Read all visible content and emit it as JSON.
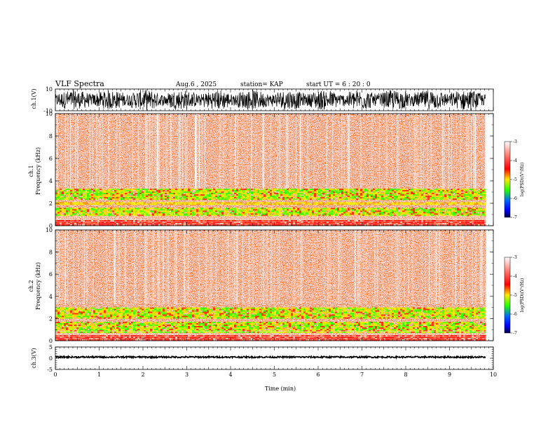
{
  "header": {
    "title": "VLF Spectra",
    "date": "Aug.6  , 2025",
    "station": "station= KAP",
    "start": "start  UT  =   6  : 20 : 0"
  },
  "chart_data": [
    {
      "type": "line",
      "id": "ch1-waveform",
      "ylabel": "ch.1(V)",
      "ylim": [
        -10,
        10
      ],
      "yticks": [
        10,
        -10
      ],
      "xlim": [
        0,
        10
      ],
      "x_end_data": 9.83,
      "description_of_signal": "dense noisy waveform between about -10 and +10 V"
    },
    {
      "type": "heatmap",
      "id": "ch1-spectrogram",
      "ylabel": "Frequency (kHz)",
      "channel_label": "ch.1",
      "ylim": [
        0,
        10
      ],
      "yticks": [
        "0",
        "2",
        "4",
        "6",
        "8",
        "10"
      ],
      "xlim": [
        0,
        10
      ],
      "x_end_data": 9.83,
      "bands_khz": [
        {
          "from": 0.0,
          "to": 0.5,
          "level": "red"
        },
        {
          "from": 0.9,
          "to": 1.6,
          "level": "yellow-green"
        },
        {
          "from": 1.9,
          "to": 2.1,
          "level": "yellow"
        },
        {
          "from": 2.4,
          "to": 3.3,
          "level": "yellow-green"
        },
        {
          "from": 3.3,
          "to": 10.0,
          "level": "red-white noise"
        }
      ]
    },
    {
      "type": "heatmap",
      "id": "ch2-spectrogram",
      "ylabel": "Frequency (kHz)",
      "channel_label": "ch.2",
      "ylim": [
        0,
        10
      ],
      "yticks": [
        "0",
        "2",
        "4",
        "6",
        "8",
        "10"
      ],
      "xlim": [
        0,
        10
      ],
      "x_end_data": 9.83,
      "bands_khz": [
        {
          "from": 0.0,
          "to": 0.5,
          "level": "red"
        },
        {
          "from": 0.8,
          "to": 1.7,
          "level": "yellow-green"
        },
        {
          "from": 2.1,
          "to": 3.0,
          "level": "yellow-green"
        },
        {
          "from": 3.0,
          "to": 10.0,
          "level": "red-white noise"
        }
      ]
    },
    {
      "type": "line",
      "id": "ch3-waveform",
      "ylabel": "ch.3(V)",
      "ylim": [
        -5,
        5
      ],
      "yticks": [
        "5",
        "0",
        "-5"
      ],
      "xlim": [
        0,
        10
      ],
      "x_end_data": 9.83,
      "baseline_value": 0.5
    }
  ],
  "xaxis": {
    "label": "Time  (min)",
    "ticks": [
      "0",
      "1",
      "2",
      "3",
      "4",
      "5",
      "6",
      "7",
      "8",
      "9",
      "10"
    ]
  },
  "colorbar": {
    "label": "log(PSD)(V²/Hz)",
    "range": [
      -7,
      -3
    ],
    "ticks": [
      "-3",
      "-4",
      "-5",
      "-6",
      "-7"
    ]
  },
  "colors": {
    "red": "#ff1a00",
    "yellow": "#ffe600",
    "green": "#33ff00",
    "blue": "#0000ff",
    "navy": "#00005a"
  }
}
